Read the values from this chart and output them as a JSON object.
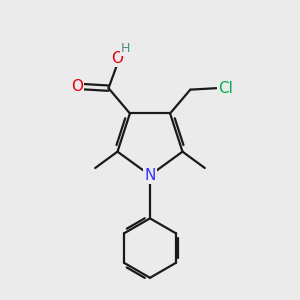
{
  "background_color": "#ebebeb",
  "bond_color": "#1a1a1a",
  "atom_colors": {
    "O_carbonyl": "#e8000d",
    "O_hydroxyl": "#e8000d",
    "N": "#3333ff",
    "Cl": "#00b050",
    "H": "#4a9090"
  },
  "bond_width": 1.6,
  "font_size_atoms": 11,
  "font_size_small": 9,
  "figsize": [
    3.0,
    3.0
  ],
  "dpi": 100
}
